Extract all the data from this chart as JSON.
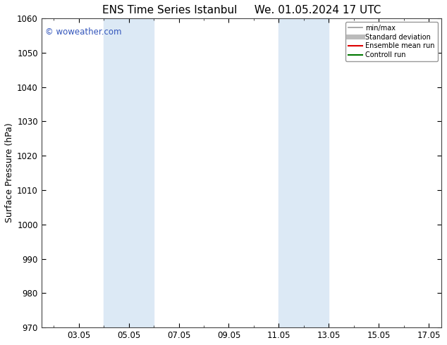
{
  "title_left": "ENS Time Series Istanbul",
  "title_right": "We. 01.05.2024 17 UTC",
  "ylabel": "Surface Pressure (hPa)",
  "ylim": [
    970,
    1060
  ],
  "yticks": [
    970,
    980,
    990,
    1000,
    1010,
    1020,
    1030,
    1040,
    1050,
    1060
  ],
  "xlim_start": 1.5,
  "xlim_end": 17.5,
  "xtick_labels": [
    "03.05",
    "05.05",
    "07.05",
    "09.05",
    "11.05",
    "13.05",
    "15.05",
    "17.05"
  ],
  "xtick_positions": [
    3,
    5,
    7,
    9,
    11,
    13,
    15,
    17
  ],
  "shaded_regions": [
    {
      "xmin": 4.0,
      "xmax": 5.0,
      "color": "#dce9f5"
    },
    {
      "xmin": 5.0,
      "xmax": 6.0,
      "color": "#dce9f5"
    },
    {
      "xmin": 11.0,
      "xmax": 12.0,
      "color": "#dce9f5"
    },
    {
      "xmin": 12.0,
      "xmax": 13.0,
      "color": "#dce9f5"
    }
  ],
  "watermark_text": "© woweather.com",
  "watermark_color": "#3355bb",
  "background_color": "#ffffff",
  "legend_items": [
    {
      "label": "min/max",
      "color": "#999999",
      "linewidth": 1.2,
      "linestyle": "-"
    },
    {
      "label": "Standard deviation",
      "color": "#bbbbbb",
      "linewidth": 5,
      "linestyle": "-"
    },
    {
      "label": "Ensemble mean run",
      "color": "#dd0000",
      "linewidth": 1.5,
      "linestyle": "-"
    },
    {
      "label": "Controll run",
      "color": "#007700",
      "linewidth": 1.5,
      "linestyle": "-"
    }
  ],
  "title_fontsize": 11,
  "axis_label_fontsize": 9,
  "tick_fontsize": 8.5
}
